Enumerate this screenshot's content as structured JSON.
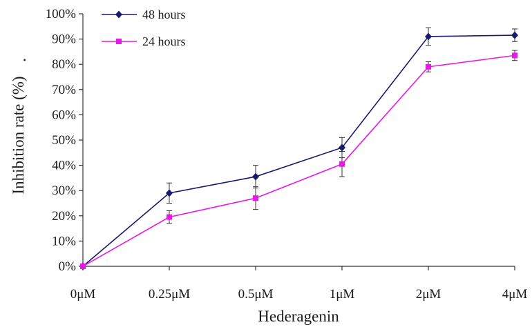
{
  "chart_data": {
    "type": "line",
    "title": "",
    "xlabel": "Hederagenin",
    "ylabel": "Inhibition rate (%)",
    "ylabel_suffix": ".",
    "categories": [
      "0μM",
      "0.25μM",
      "0.5μM",
      "1μM",
      "2μM",
      "4μM"
    ],
    "ylim": [
      0,
      100
    ],
    "yticks": [
      "0%",
      "10%",
      "20%",
      "30%",
      "40%",
      "50%",
      "60%",
      "70%",
      "80%",
      "90%",
      "100%"
    ],
    "grid": false,
    "legend_position": "top-left",
    "series": [
      {
        "name": "48 hours",
        "color": "#1a1a6e",
        "marker": "diamond",
        "values": [
          0,
          29,
          35.5,
          47,
          91,
          91.5
        ],
        "errors": [
          0,
          4,
          4.5,
          4,
          3.5,
          2.5
        ]
      },
      {
        "name": "24 hours",
        "color": "#e619e6",
        "marker": "square",
        "values": [
          0,
          19.5,
          27,
          40.5,
          79,
          83.5
        ],
        "errors": [
          0,
          2.5,
          4.5,
          5,
          2,
          2
        ]
      }
    ]
  }
}
